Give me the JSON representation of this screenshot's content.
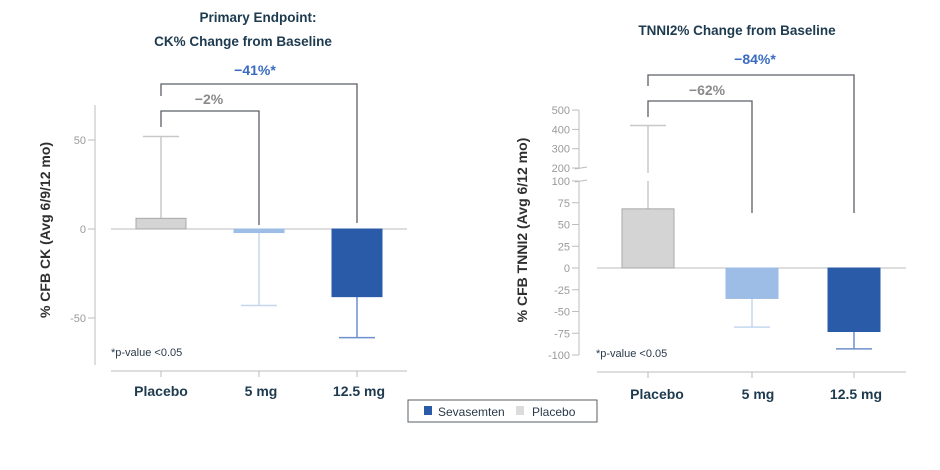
{
  "colors": {
    "placebo": "#d4d4d4",
    "dose5": "#9dbde6",
    "dose125": "#2a5ba8",
    "bracket": "#5a5f66",
    "axis": "#bdbdbd"
  },
  "legend": {
    "items": [
      {
        "label": "Sevasemten",
        "color": "#2a5ba8"
      },
      {
        "label": "Placebo",
        "color": "#dcdcdc"
      }
    ]
  },
  "chart_data": [
    {
      "type": "bar",
      "title_lines": [
        "Primary Endpoint:",
        "CK% Change from Baseline"
      ],
      "ylabel": "% CFB CK  (Avg 6/9/12 mo)",
      "categories": [
        "Placebo",
        "5 mg",
        "12.5 mg"
      ],
      "values": [
        6,
        -2,
        -38
      ],
      "error_ends": [
        52,
        -43,
        -61
      ],
      "yticks": [
        {
          "v": 50,
          "label": "50"
        },
        {
          "v": 0,
          "label": "0"
        },
        {
          "v": -50,
          "label": "-50"
        }
      ],
      "ylim": [
        -72,
        70
      ],
      "comparisons": [
        {
          "label": "−41%*",
          "from": "Placebo",
          "to": "12.5 mg",
          "significant": true
        },
        {
          "label": "−2%",
          "from": "Placebo",
          "to": "5 mg",
          "significant": false
        }
      ],
      "footnote": "*p-value <0.05"
    },
    {
      "type": "bar",
      "title_lines": [
        "TNNI2% Change from Baseline"
      ],
      "ylabel": "% CFB TNNI2 (Avg 6/12 mo)",
      "categories": [
        "Placebo",
        "5 mg",
        "12.5 mg"
      ],
      "values": [
        68,
        -35,
        -73
      ],
      "error_ends": [
        420,
        -68,
        -93
      ],
      "yticks": [
        {
          "v": 500,
          "label": "500"
        },
        {
          "v": 400,
          "label": "400"
        },
        {
          "v": 300,
          "label": "300"
        },
        {
          "v": 200,
          "label": "200"
        },
        {
          "v": 100,
          "label": "100"
        },
        {
          "v": 75,
          "label": "75"
        },
        {
          "v": 50,
          "label": "50"
        },
        {
          "v": 25,
          "label": "25"
        },
        {
          "v": 0,
          "label": "0"
        },
        {
          "v": -25,
          "label": "-25"
        },
        {
          "v": -50,
          "label": "-50"
        },
        {
          "v": -75,
          "label": "-75"
        },
        {
          "v": -100,
          "label": "-100"
        }
      ],
      "axis_break": [
        100,
        200
      ],
      "ylim": [
        -100,
        500
      ],
      "comparisons": [
        {
          "label": "−84%*",
          "from": "Placebo",
          "to": "12.5 mg",
          "significant": true
        },
        {
          "label": "−62%",
          "from": "Placebo",
          "to": "5 mg",
          "significant": false
        }
      ],
      "footnote": "*p-value <0.05"
    }
  ]
}
